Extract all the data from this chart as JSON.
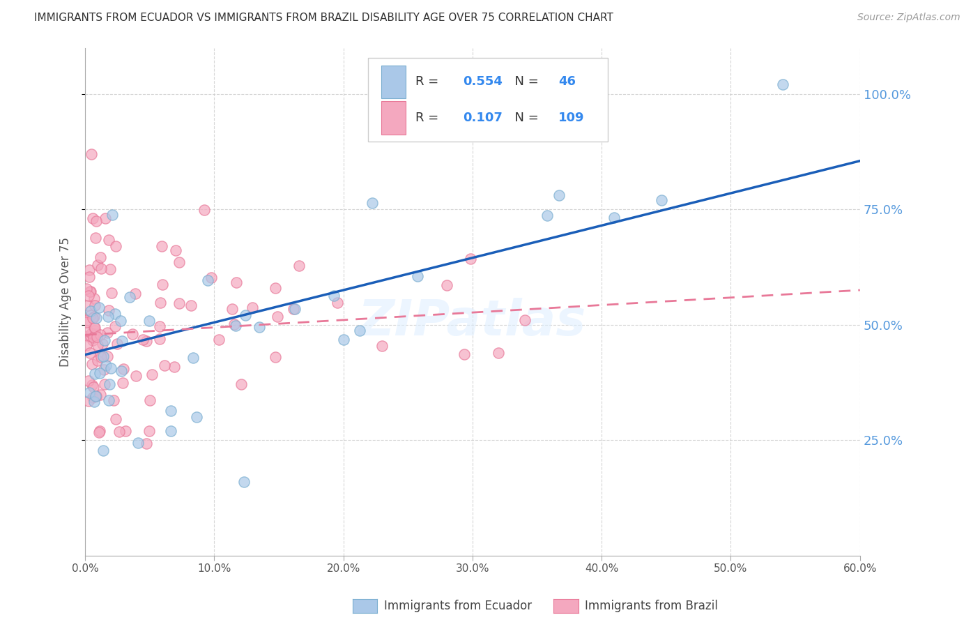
{
  "title": "IMMIGRANTS FROM ECUADOR VS IMMIGRANTS FROM BRAZIL DISABILITY AGE OVER 75 CORRELATION CHART",
  "source": "Source: ZipAtlas.com",
  "ylabel": "Disability Age Over 75",
  "xlim": [
    0.0,
    0.6
  ],
  "ylim": [
    0.0,
    1.1
  ],
  "xtick_labels": [
    "0.0%",
    "10.0%",
    "20.0%",
    "30.0%",
    "40.0%",
    "50.0%",
    "60.0%"
  ],
  "xtick_values": [
    0.0,
    0.1,
    0.2,
    0.3,
    0.4,
    0.5,
    0.6
  ],
  "ytick_labels": [
    "25.0%",
    "50.0%",
    "75.0%",
    "100.0%"
  ],
  "ytick_values": [
    0.25,
    0.5,
    0.75,
    1.0
  ],
  "ecuador_color": "#aac8e8",
  "brazil_color": "#f4a8bf",
  "ecuador_edge_color": "#7aaed0",
  "brazil_edge_color": "#e87898",
  "ecuador_line_color": "#1a5eb8",
  "brazil_line_color": "#e87898",
  "ecuador_R": 0.554,
  "ecuador_N": 46,
  "brazil_R": 0.107,
  "brazil_N": 109,
  "background_color": "#ffffff",
  "grid_color": "#cccccc",
  "watermark": "ZIPatlas",
  "legend_label_ec": "Immigrants from Ecuador",
  "legend_label_br": "Immigrants from Brazil",
  "ecuador_line_x0": 0.0,
  "ecuador_line_y0": 0.435,
  "ecuador_line_x1": 0.6,
  "ecuador_line_y1": 0.855,
  "brazil_line_x0": 0.0,
  "brazil_line_y0": 0.478,
  "brazil_line_x1": 0.6,
  "brazil_line_y1": 0.575
}
